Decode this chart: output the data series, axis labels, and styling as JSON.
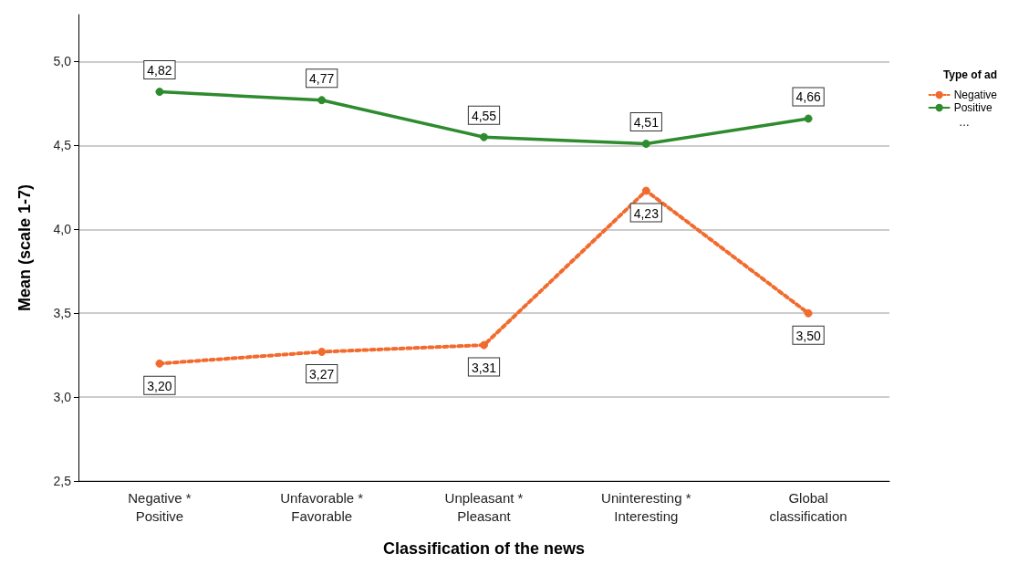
{
  "chart_data": {
    "type": "line",
    "xlabel": "Classification of the news",
    "ylabel": "Mean (scale 1-7)",
    "legend_title": "Type of ad",
    "categories": [
      "Negative *\nPositive",
      "Unfavorable *\nFavorable",
      "Unpleasant *\nPleasant",
      "Uninteresting *\nInteresting",
      "Global\nclassification"
    ],
    "series": [
      {
        "name": "Negative",
        "color": "#f26b2e",
        "line_style": "dotted",
        "values": [
          3.2,
          3.27,
          3.31,
          4.23,
          3.5
        ],
        "value_labels": [
          "3,20",
          "3,27",
          "3,31",
          "4,23",
          "3,50"
        ]
      },
      {
        "name": "Positive",
        "color": "#2e8b2e",
        "line_style": "solid",
        "values": [
          4.82,
          4.77,
          4.55,
          4.51,
          4.66
        ],
        "value_labels": [
          "4,82",
          "4,77",
          "4,55",
          "4,51",
          "4,66"
        ]
      }
    ],
    "annotations": [
      "…"
    ],
    "ylim": [
      2.5,
      5.28
    ],
    "yticks": [
      {
        "value": 2.5,
        "label": "2,5"
      },
      {
        "value": 3.0,
        "label": "3,0"
      },
      {
        "value": 3.5,
        "label": "3,5"
      },
      {
        "value": 4.0,
        "label": "4,0"
      },
      {
        "value": 4.5,
        "label": "4,5"
      },
      {
        "value": 5.0,
        "label": "5,0"
      }
    ],
    "grid": "y",
    "legend": "right",
    "marker": "circle"
  }
}
